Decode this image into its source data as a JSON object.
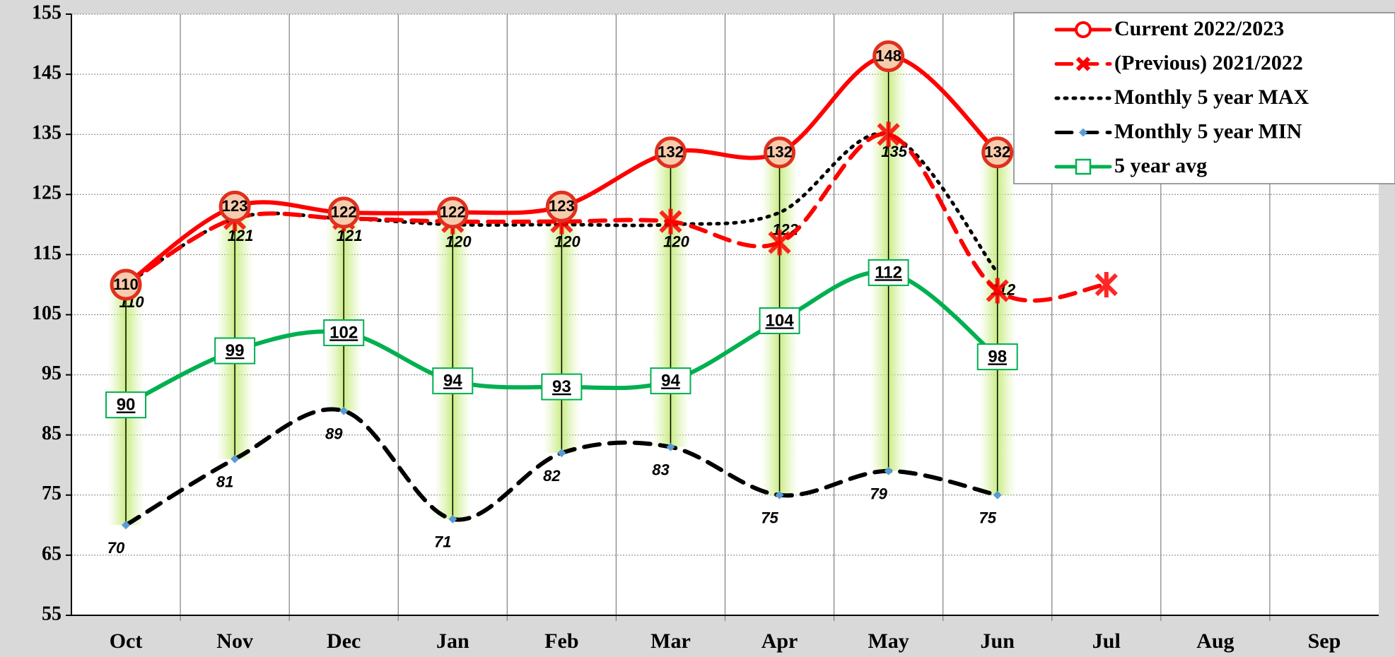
{
  "chart_data": {
    "type": "line",
    "categories": [
      "Oct",
      "Nov",
      "Dec",
      "Jan",
      "Feb",
      "Mar",
      "Apr",
      "May",
      "Jun",
      "Jul",
      "Aug",
      "Sep"
    ],
    "series": [
      {
        "name": "Current 2022/2023",
        "color": "#ff0000",
        "line": "solid",
        "marker": "circle",
        "labels": "center",
        "values": [
          110,
          123,
          122,
          122,
          123,
          132,
          132,
          148,
          132,
          null,
          null,
          null
        ]
      },
      {
        "name": "(Previous) 2021/2022",
        "color": "#ff0000",
        "line": "dashed",
        "marker": "x",
        "values": [
          110,
          121,
          121,
          120.5,
          120.5,
          120.5,
          117,
          135,
          109,
          110,
          null,
          null
        ]
      },
      {
        "name": "Monthly 5 year MAX",
        "color": "#000000",
        "line": "dotted",
        "marker": "none",
        "labels": "below",
        "values": [
          110,
          121,
          121,
          120,
          120,
          120,
          122,
          135,
          112,
          null,
          null,
          null
        ]
      },
      {
        "name": "Monthly 5 year MIN",
        "color": "#000000",
        "line": "dashed",
        "marker": "diamond",
        "labels": "below",
        "values": [
          70,
          81,
          89,
          71,
          82,
          83,
          75,
          79,
          75,
          null,
          null,
          null
        ]
      },
      {
        "name": "5 year avg",
        "color": "#00b050",
        "line": "solid",
        "marker": "square",
        "labels": "box",
        "values": [
          90,
          99,
          102,
          94,
          93,
          94,
          104,
          112,
          98,
          null,
          null,
          null
        ]
      }
    ],
    "ylim": [
      55,
      155
    ],
    "yticks": [
      55,
      65,
      75,
      85,
      95,
      105,
      115,
      125,
      135,
      145,
      155
    ],
    "grid": true,
    "legend": "top-right"
  }
}
